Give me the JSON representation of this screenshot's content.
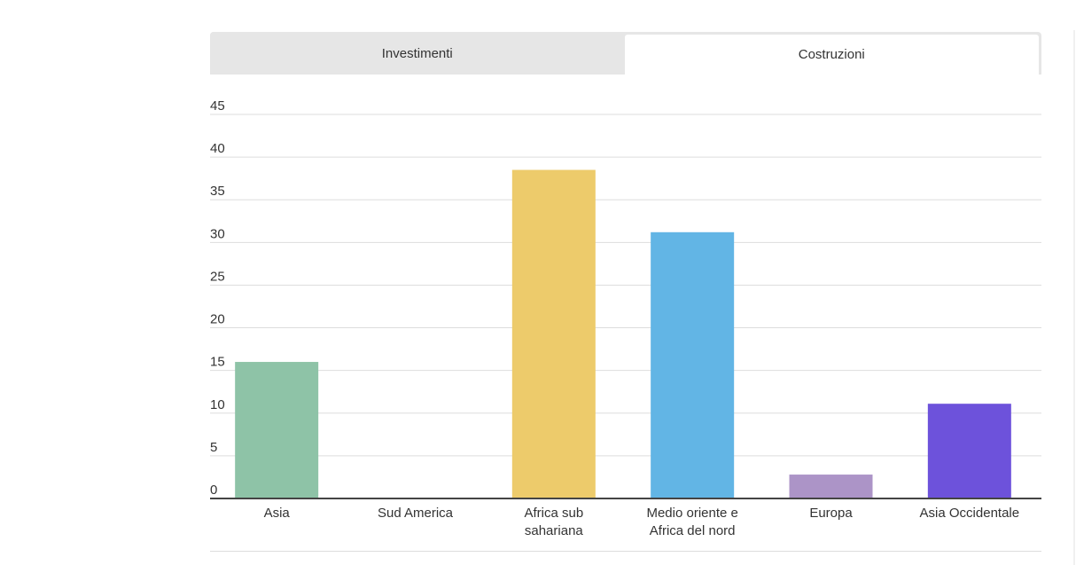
{
  "tabs": [
    {
      "label": "Investimenti",
      "active": false
    },
    {
      "label": "Costruzioni",
      "active": true
    }
  ],
  "chart_data": {
    "type": "bar",
    "title": "",
    "xlabel": "",
    "ylabel": "",
    "ylim": [
      0,
      45
    ],
    "yticks": [
      "0",
      "5",
      "10",
      "15",
      "20",
      "25",
      "30",
      "35",
      "40",
      "45"
    ],
    "grid": true,
    "categories": [
      [
        "Asia"
      ],
      [
        "Sud America"
      ],
      [
        "Africa sub",
        "sahariana"
      ],
      [
        "Medio oriente e",
        "Africa del nord"
      ],
      [
        "Europa"
      ],
      [
        "Asia Occidentale"
      ]
    ],
    "values": [
      16,
      0,
      38.5,
      31.2,
      2.8,
      11.1
    ],
    "colors": [
      "#8ec3a7",
      "#cccccc",
      "#edcb6b",
      "#62b5e5",
      "#ac94c7",
      "#6d52db"
    ]
  }
}
